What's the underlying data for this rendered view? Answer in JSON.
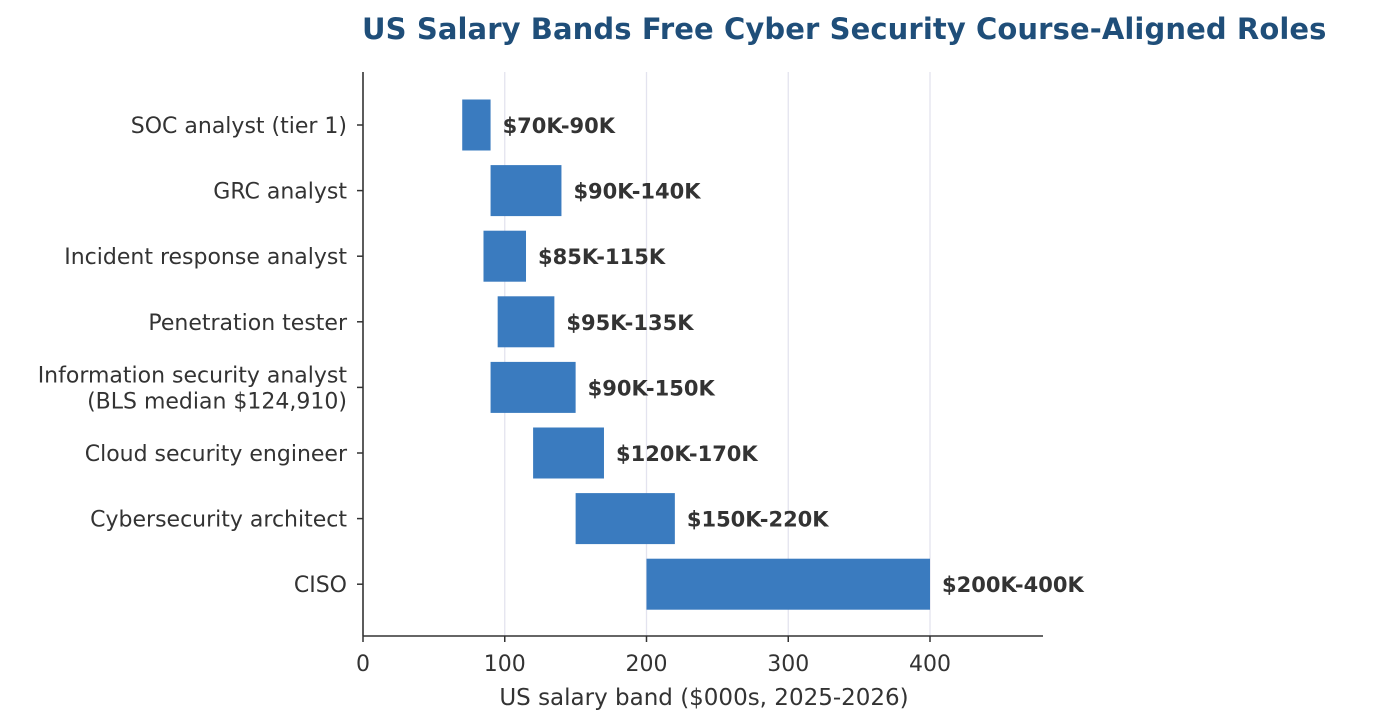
{
  "chart_data": {
    "type": "bar",
    "orientation": "horizontal",
    "title": "US Salary Bands  Free Cyber Security Course-Aligned Roles",
    "xlabel": "US salary band ($000s, 2025-2026)",
    "ylabel": "",
    "xlim": [
      0,
      480
    ],
    "xticks": [
      0,
      100,
      200,
      300,
      400
    ],
    "grid": "vertical",
    "bar_color": "#3a7bbf",
    "categories": [
      [
        "SOC analyst (tier 1)"
      ],
      [
        "GRC analyst"
      ],
      [
        "Incident response analyst"
      ],
      [
        "Penetration tester"
      ],
      [
        "Information security analyst",
        "(BLS median $124,910)"
      ],
      [
        "Cloud security engineer"
      ],
      [
        "Cybersecurity architect"
      ],
      [
        "CISO"
      ]
    ],
    "ranges": [
      [
        70,
        90
      ],
      [
        90,
        140
      ],
      [
        85,
        115
      ],
      [
        95,
        135
      ],
      [
        90,
        150
      ],
      [
        120,
        170
      ],
      [
        150,
        220
      ],
      [
        200,
        400
      ]
    ],
    "labels": [
      "$70K-90K",
      "$90K-140K",
      "$85K-115K",
      "$95K-135K",
      "$90K-150K",
      "$120K-170K",
      "$150K-220K",
      "$200K-400K"
    ]
  }
}
